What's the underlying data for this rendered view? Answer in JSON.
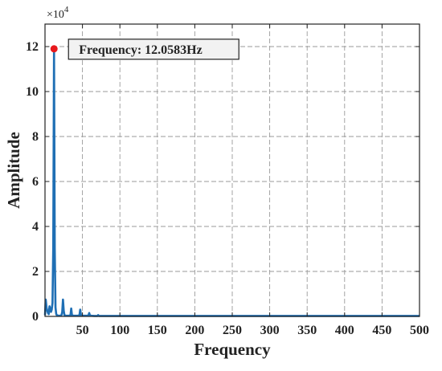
{
  "chart_data": {
    "type": "line",
    "title": "",
    "xlabel": "Frequency",
    "ylabel": "Amplitude",
    "xlim": [
      0,
      500
    ],
    "ylim": [
      0,
      13
    ],
    "y_multiplier": "×10",
    "y_multiplier_exponent": "4",
    "x_ticks": [
      50,
      100,
      150,
      200,
      250,
      300,
      350,
      400,
      450,
      500
    ],
    "x_tick_labels": [
      "50",
      "100",
      "150",
      "200",
      "250",
      "300",
      "350",
      "400",
      "450",
      "500"
    ],
    "y_ticks": [
      0,
      2,
      4,
      6,
      8,
      10,
      12
    ],
    "y_tick_labels": [
      "0",
      "2",
      "4",
      "6",
      "8",
      "10",
      "12"
    ],
    "grid": true,
    "grid_style": "dashed",
    "series": [
      {
        "color": "#1f6fb4",
        "x": [
          0,
          1,
          2,
          3,
          4,
          5,
          6,
          7,
          8,
          9,
          10,
          11,
          12.0583,
          13,
          14,
          15,
          16,
          18,
          20,
          22,
          23,
          24,
          25,
          26,
          28,
          30,
          32,
          34,
          35,
          36,
          38,
          40,
          44,
          46,
          47,
          48,
          50,
          52,
          56,
          58,
          59,
          60,
          62,
          66,
          70,
          71,
          72,
          74,
          80,
          84,
          90,
          100,
          120,
          150,
          200,
          250,
          300,
          350,
          400,
          450,
          500
        ],
        "y": [
          0.05,
          0.75,
          0.4,
          0.25,
          0.15,
          0.1,
          0.45,
          0.35,
          0.2,
          0.3,
          0.6,
          3.0,
          11.9,
          3.0,
          0.4,
          0.1,
          0.05,
          0.03,
          0.03,
          0.05,
          0.2,
          0.75,
          0.25,
          0.05,
          0.03,
          0.03,
          0.03,
          0.05,
          0.35,
          0.05,
          0.03,
          0.03,
          0.03,
          0.05,
          0.3,
          0.05,
          0.03,
          0.03,
          0.03,
          0.04,
          0.15,
          0.04,
          0.03,
          0.02,
          0.02,
          0.06,
          0.02,
          0.02,
          0.02,
          0.02,
          0.02,
          0.02,
          0.02,
          0.02,
          0.02,
          0.02,
          0.02,
          0.02,
          0.02,
          0.02,
          0.02
        ]
      }
    ],
    "marker": {
      "x": 12.0583,
      "y": 11.9,
      "color": "#e8191d"
    },
    "annotation": {
      "text": "Frequency: 12.0583Hz"
    }
  }
}
